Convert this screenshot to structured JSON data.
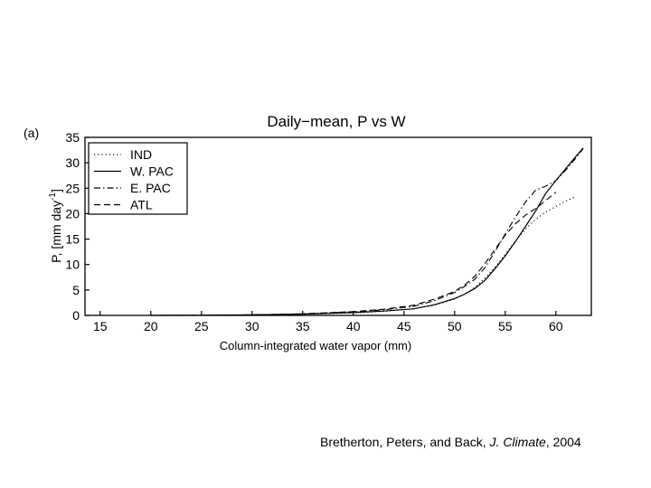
{
  "panel_label": "(a)",
  "chart_data": {
    "type": "line",
    "title": "Daily−mean, P vs W",
    "xlabel": "Column-integrated water vapor (mm)",
    "ylabel": "P, [mm day",
    "ylabel_sup": "-1",
    "ylabel_end": "]",
    "xlim": [
      13.5,
      63.5
    ],
    "ylim": [
      0,
      35
    ],
    "xticks": [
      15,
      20,
      25,
      30,
      35,
      40,
      45,
      50,
      55,
      60
    ],
    "yticks": [
      0,
      5,
      10,
      15,
      20,
      25,
      30,
      35
    ],
    "grid": false,
    "legend_position": "top-left",
    "series": [
      {
        "name": "IND",
        "style": "dotted",
        "x": [
          20,
          25,
          30,
          35,
          40,
          43,
          46,
          48,
          50,
          51,
          52,
          53,
          54,
          55,
          56,
          57,
          58,
          59,
          60,
          61,
          62
        ],
        "y": [
          0,
          0.02,
          0.1,
          0.25,
          0.5,
          0.8,
          1.3,
          2.0,
          3.2,
          4.2,
          5.5,
          7.3,
          9.5,
          12.0,
          14.6,
          17.0,
          18.9,
          20.3,
          21.4,
          22.5,
          23.4
        ]
      },
      {
        "name": "W. PAC",
        "style": "solid",
        "x": [
          20,
          25,
          30,
          35,
          40,
          43,
          46,
          48,
          50,
          51,
          52,
          53,
          54,
          55,
          56,
          57,
          58,
          59,
          60,
          61,
          62,
          62.7
        ],
        "y": [
          0,
          0.02,
          0.1,
          0.25,
          0.55,
          0.85,
          1.3,
          2.1,
          3.3,
          4.2,
          5.3,
          6.9,
          9.2,
          11.7,
          14.5,
          17.5,
          20.5,
          24.0,
          26.5,
          28.9,
          31.3,
          32.9
        ]
      },
      {
        "name": "E. PAC",
        "style": "dashdot",
        "x": [
          20,
          25,
          30,
          35,
          40,
          43,
          46,
          48,
          50,
          51,
          52,
          53,
          54,
          55,
          56,
          57,
          58,
          59,
          60,
          61,
          62,
          62.7
        ],
        "y": [
          0,
          0.02,
          0.1,
          0.3,
          0.7,
          1.1,
          1.8,
          2.9,
          4.5,
          5.7,
          7.1,
          9.4,
          12.6,
          16.0,
          19.3,
          22.3,
          24.6,
          25.4,
          26.5,
          28.6,
          31.0,
          32.8
        ]
      },
      {
        "name": "ATL",
        "style": "dashed",
        "x": [
          20,
          25,
          30,
          35,
          40,
          43,
          46,
          48,
          50,
          51,
          52,
          53,
          54,
          55,
          56,
          57,
          58,
          59,
          60
        ],
        "y": [
          0,
          0.02,
          0.1,
          0.3,
          0.75,
          1.2,
          2.0,
          3.2,
          4.7,
          6.0,
          7.7,
          10.2,
          13.0,
          15.8,
          18.0,
          19.7,
          21.0,
          22.6,
          24.2
        ]
      }
    ]
  },
  "citation": {
    "authors": "Bretherton, Peters, and Back,",
    "journal": "J. Climate",
    "year": ", 2004"
  }
}
